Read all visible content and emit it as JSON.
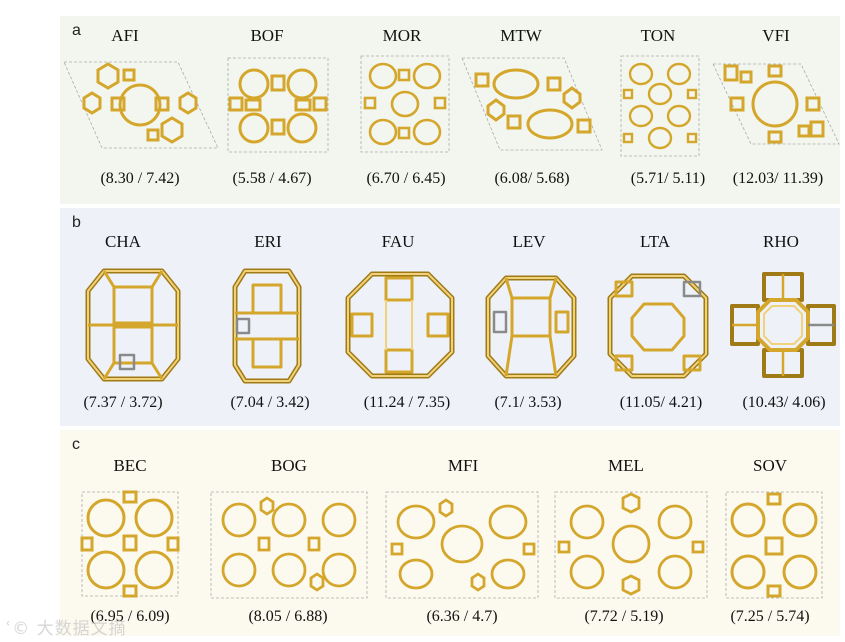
{
  "panels": [
    {
      "letter": "a",
      "items": [
        {
          "name": "AFI",
          "values": "(8.30 / 7.42)"
        },
        {
          "name": "BOF",
          "values": "(5.58 / 4.67)"
        },
        {
          "name": "MOR",
          "values": "(6.70 / 6.45)"
        },
        {
          "name": "MTW",
          "values": "(6.08/ 5.68)"
        },
        {
          "name": "TON",
          "values": "(5.71/ 5.11)"
        },
        {
          "name": "VFI",
          "values": "(12.03/ 11.39)"
        }
      ]
    },
    {
      "letter": "b",
      "items": [
        {
          "name": "CHA",
          "values": "(7.37 / 3.72)"
        },
        {
          "name": "ERI",
          "values": "(7.04 / 3.42)"
        },
        {
          "name": "FAU",
          "values": "(11.24 / 7.35)"
        },
        {
          "name": "LEV",
          "values": "(7.1/ 3.53)"
        },
        {
          "name": "LTA",
          "values": "(11.05/ 4.21)"
        },
        {
          "name": "RHO",
          "values": "(10.43/ 4.06)"
        }
      ]
    },
    {
      "letter": "c",
      "items": [
        {
          "name": "BEC",
          "values": "(6.95 / 6.09)"
        },
        {
          "name": "BOG",
          "values": "(8.05 / 6.88)"
        },
        {
          "name": "MFI",
          "values": "(6.36 / 4.7)"
        },
        {
          "name": "MEL",
          "values": "(7.72 / 5.19)"
        },
        {
          "name": "SOV",
          "values": "(7.25 / 5.74)"
        }
      ]
    }
  ],
  "watermark": "大数据文摘",
  "colors": {
    "frame": "#d4a72c",
    "frame_dark": "#a07a16",
    "frame_light": "#f0d27a",
    "edge_grey": "#8a8a8a"
  }
}
